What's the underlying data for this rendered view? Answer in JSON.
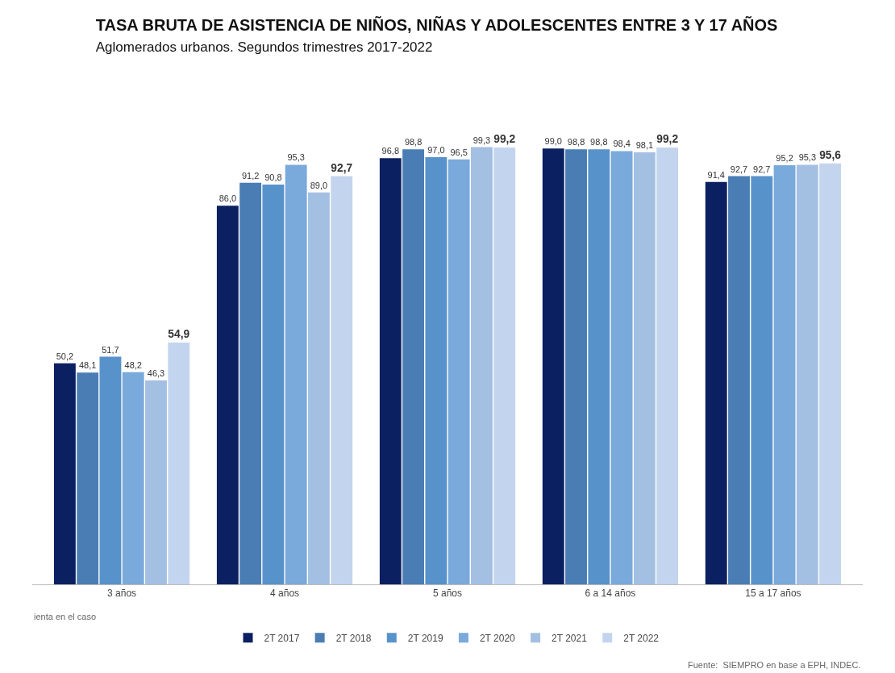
{
  "chart_data": {
    "type": "bar",
    "title": "TASA BRUTA DE ASISTENCIA DE NIÑOS, NIÑAS Y ADOLESCENTES ENTRE 3 Y 17 AÑOS",
    "subtitle": "Aglomerados urbanos. Segundos trimestres 2017-2022",
    "categories": [
      "3 años",
      "4 años",
      "5 años",
      "6 a 14 años",
      "15 a 17 años"
    ],
    "series": [
      {
        "name": "2T 2017",
        "color": "#0b2060",
        "values": [
          50.2,
          86.0,
          96.8,
          99.0,
          91.4
        ],
        "value_labels": [
          "50,2",
          "86,0",
          "96,8",
          "99,0",
          "91,4"
        ]
      },
      {
        "name": "2T 2018",
        "color": "#4a7db4",
        "values": [
          48.1,
          91.2,
          98.8,
          98.8,
          92.7
        ],
        "value_labels": [
          "48,1",
          "91,2",
          "98,8",
          "98,8",
          "92,7"
        ]
      },
      {
        "name": "2T 2019",
        "color": "#5892ca",
        "values": [
          51.7,
          90.8,
          97.0,
          98.8,
          92.7
        ],
        "value_labels": [
          "51,7",
          "90,8",
          "97,0",
          "98,8",
          "92,7"
        ]
      },
      {
        "name": "2T 2020",
        "color": "#7aa9dc",
        "values": [
          48.2,
          95.3,
          96.5,
          98.4,
          95.2
        ],
        "value_labels": [
          "48,2",
          "95,3",
          "96,5",
          "98,4",
          "95,2"
        ]
      },
      {
        "name": "2T 2021",
        "color": "#a3c0e3",
        "values": [
          46.3,
          89.0,
          99.3,
          98.1,
          95.3
        ],
        "value_labels": [
          "46,3",
          "89,0",
          "99,3",
          "98,1",
          "95,3"
        ]
      },
      {
        "name": "2T 2022",
        "color": "#c3d5ee",
        "values": [
          54.9,
          92.7,
          99.2,
          99.2,
          95.6
        ],
        "value_labels": [
          "54,9",
          "92,7",
          "99,2",
          "99,2",
          "95,6"
        ]
      }
    ],
    "legend": "bottom",
    "annotations": [
      "ienta en el caso",
      "Fuente:  SIEMPRO en base a EPH, INDEC."
    ]
  }
}
